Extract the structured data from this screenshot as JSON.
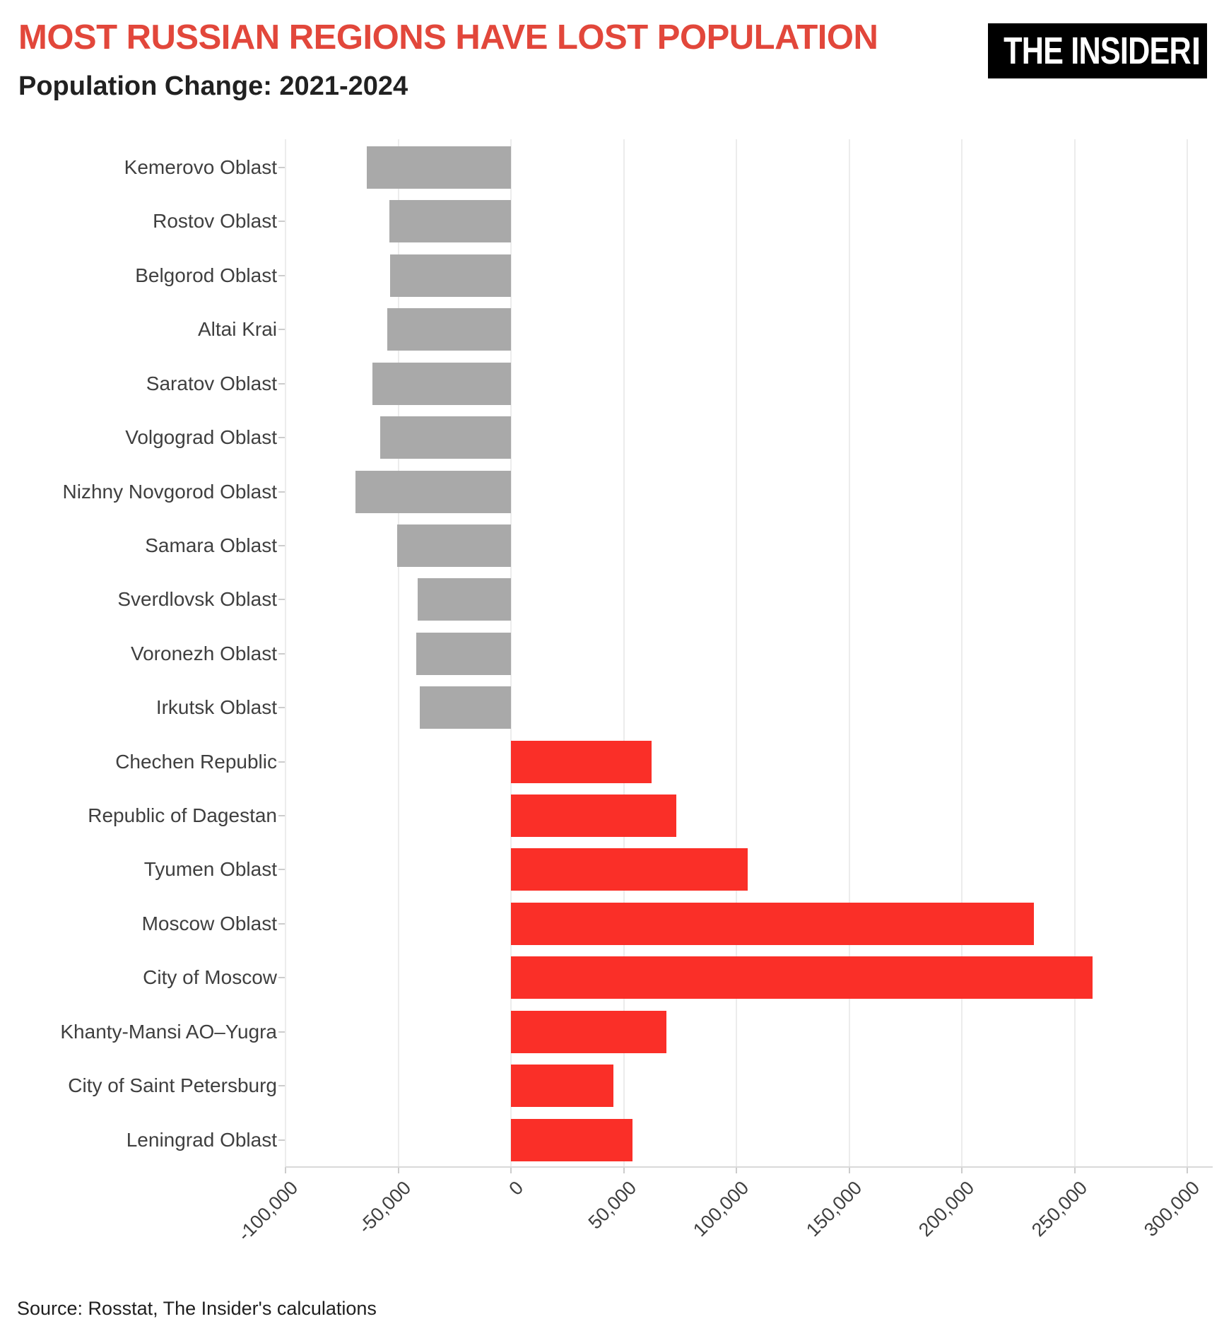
{
  "header": {
    "title": "MOST RUSSIAN REGIONS HAVE LOST POPULATION",
    "subtitle": "Population Change: 2021-2024",
    "logo_text": "THE INSIDER"
  },
  "footer": {
    "source": "Source: Rosstat, The Insider's calculations"
  },
  "colors": {
    "background": "#ffffff",
    "title_red": "#e2473b",
    "subtitle_dark": "#212121",
    "bar_positive": "#fa2f28",
    "bar_negative": "#a9a9a9",
    "grid_line": "#ececec",
    "axis_line": "#d9d9d9",
    "tick_mark": "#cccccc",
    "axis_text": "#3f3f3f",
    "logo_bg": "#000000",
    "logo_fg": "#ffffff",
    "source_text": "#1f1f1f"
  },
  "chart_data": {
    "type": "bar",
    "orientation": "horizontal",
    "title": "MOST RUSSIAN REGIONS HAVE LOST POPULATION",
    "subtitle": "Population Change: 2021-2024",
    "categories": [
      "Kemerovo Oblast",
      "Rostov Oblast",
      "Belgorod Oblast",
      "Altai Krai",
      "Saratov Oblast",
      "Volgograd Oblast",
      "Nizhny Novgorod Oblast",
      "Samara Oblast",
      "Sverdlovsk Oblast",
      "Voronezh Oblast",
      "Irkutsk Oblast",
      "Chechen Republic",
      "Republic of Dagestan",
      "Tyumen Oblast",
      "Moscow Oblast",
      "City of Moscow",
      "Khanty-Mansi AO–Yugra",
      "City of Saint Petersburg",
      "Leningrad Oblast"
    ],
    "values": [
      -64000,
      -54000,
      -53500,
      -55000,
      -61500,
      -58000,
      -69000,
      -50500,
      -41500,
      -42000,
      -40500,
      62500,
      73500,
      105000,
      232000,
      258000,
      69000,
      45500,
      54000
    ],
    "xlim": [
      -100000,
      300000
    ],
    "x_ticks": [
      -100000,
      -50000,
      0,
      50000,
      100000,
      150000,
      200000,
      250000,
      300000
    ],
    "x_tick_labels": [
      "-100,000",
      "-50,000",
      "0",
      "50,000",
      "100,000",
      "150,000",
      "200,000",
      "250,000",
      "300,000"
    ],
    "grid": "vertical",
    "legend": false,
    "color_rule": "negative bars gray, positive bars red"
  }
}
